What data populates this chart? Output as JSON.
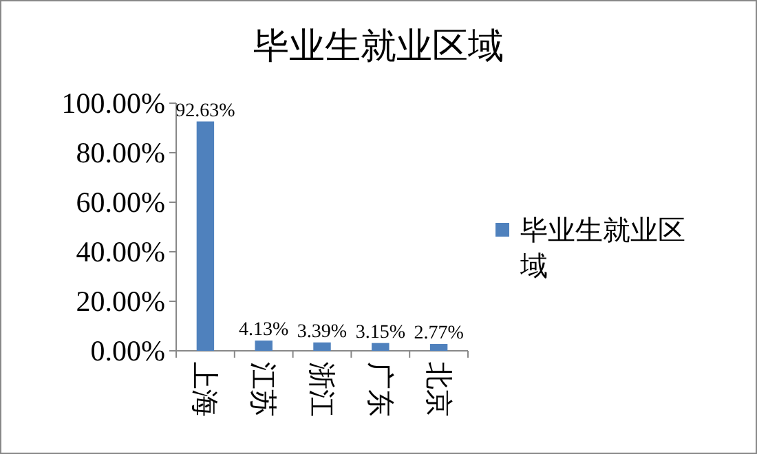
{
  "chart_data": {
    "type": "bar",
    "title": "毕业生就业区域",
    "categories": [
      "上海",
      "江苏",
      "浙江",
      "广东",
      "北京"
    ],
    "series": [
      {
        "name": "毕业生就业区域",
        "color": "#4f81bd",
        "values": [
          92.63,
          4.13,
          3.39,
          3.15,
          2.77
        ]
      }
    ],
    "value_labels": [
      "92.63%",
      "4.13%",
      "3.39%",
      "3.15%",
      "2.77%"
    ],
    "ylim": [
      0,
      100
    ],
    "yticks": [
      {
        "value": 0,
        "label": "0.00%"
      },
      {
        "value": 20,
        "label": "20.00%"
      },
      {
        "value": 40,
        "label": "40.00%"
      },
      {
        "value": 60,
        "label": "60.00%"
      },
      {
        "value": 80,
        "label": "80.00%"
      },
      {
        "value": 100,
        "label": "100.00%"
      }
    ],
    "legend": "right",
    "grid": false
  }
}
